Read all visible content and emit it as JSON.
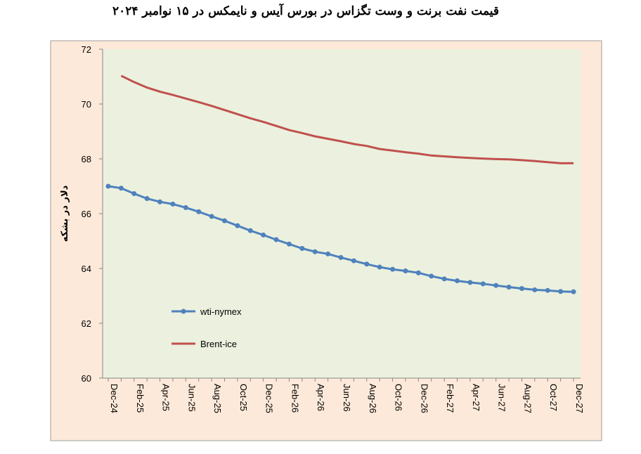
{
  "chart_data": {
    "type": "line",
    "title": "قیمت نفت برنت و وست تگزاس در بورس آیس و نایمکس در ۱۵ نوامبر ۲۰۲۴",
    "xlabel": "",
    "ylabel": "دلار در بشکه",
    "ylim": [
      60,
      72
    ],
    "yticks": [
      60,
      62,
      64,
      66,
      68,
      70,
      72
    ],
    "x_tick_labels": [
      "Dec-24",
      "Feb-25",
      "Apr-25",
      "Jun-25",
      "Aug-25",
      "Oct-25",
      "Dec-25",
      "Feb-26",
      "Apr-26",
      "Jun-26",
      "Aug-26",
      "Oct-26",
      "Dec-26",
      "Feb-27",
      "Apr-27",
      "Jun-27",
      "Aug-27",
      "Oct-27",
      "Dec-27"
    ],
    "x": [
      "Dec-24",
      "Jan-25",
      "Feb-25",
      "Mar-25",
      "Apr-25",
      "May-25",
      "Jun-25",
      "Jul-25",
      "Aug-25",
      "Sep-25",
      "Oct-25",
      "Nov-25",
      "Dec-25",
      "Jan-26",
      "Feb-26",
      "Mar-26",
      "Apr-26",
      "May-26",
      "Jun-26",
      "Jul-26",
      "Aug-26",
      "Sep-26",
      "Oct-26",
      "Nov-26",
      "Dec-26",
      "Jan-27",
      "Feb-27",
      "Mar-27",
      "Apr-27",
      "May-27",
      "Jun-27",
      "Jul-27",
      "Aug-27",
      "Sep-27",
      "Oct-27",
      "Nov-27",
      "Dec-27"
    ],
    "grid": false,
    "legend_position": "bottom-left",
    "colors": {
      "plot_background": "#ebf1de",
      "outer_background": "#fde9d9",
      "wti": "#4f81bd",
      "brent": "#c0504d"
    },
    "series": [
      {
        "name": "wti-nymex",
        "marker": "circle",
        "values": [
          67.0,
          66.93,
          66.73,
          66.55,
          66.43,
          66.35,
          66.22,
          66.07,
          65.9,
          65.74,
          65.56,
          65.38,
          65.22,
          65.05,
          64.89,
          64.73,
          64.61,
          64.53,
          64.4,
          64.28,
          64.16,
          64.05,
          63.97,
          63.91,
          63.84,
          63.72,
          63.62,
          63.55,
          63.49,
          63.44,
          63.38,
          63.32,
          63.27,
          63.22,
          63.2,
          63.16,
          63.15
        ]
      },
      {
        "name": "Brent-ice",
        "marker": "none",
        "values": [
          null,
          71.03,
          70.8,
          70.6,
          70.45,
          70.33,
          70.2,
          70.07,
          69.93,
          69.78,
          69.63,
          69.48,
          69.35,
          69.2,
          69.05,
          68.94,
          68.82,
          68.73,
          68.64,
          68.54,
          68.47,
          68.36,
          68.3,
          68.24,
          68.19,
          68.12,
          68.09,
          68.06,
          68.03,
          68.01,
          67.99,
          67.98,
          67.95,
          67.92,
          67.88,
          67.84,
          67.84
        ]
      }
    ]
  }
}
